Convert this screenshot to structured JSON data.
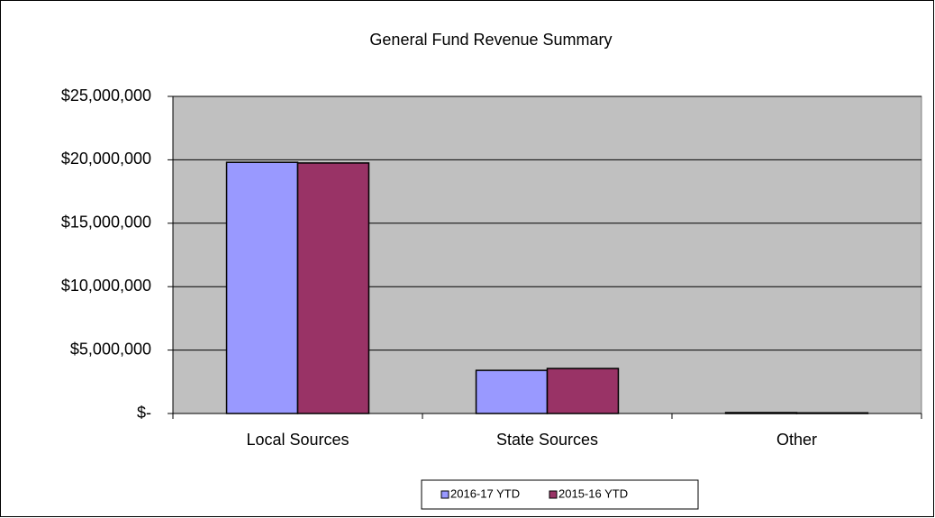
{
  "chart_data": {
    "type": "bar",
    "title": "General Fund Revenue Summary",
    "categories": [
      "Local Sources",
      "State Sources",
      "Other"
    ],
    "series": [
      {
        "name": "2016-17 YTD",
        "color": "#9999ff",
        "values": [
          19800000,
          3400000,
          70000
        ]
      },
      {
        "name": "2015-16 YTD",
        "color": "#993366",
        "values": [
          19750000,
          3550000,
          50000
        ]
      }
    ],
    "ylim": [
      0,
      25000000
    ],
    "yticks": [
      {
        "value": 0,
        "label": "$-"
      },
      {
        "value": 5000000,
        "label": "$5,000,000"
      },
      {
        "value": 10000000,
        "label": "$10,000,000"
      },
      {
        "value": 15000000,
        "label": "$15,000,000"
      },
      {
        "value": 20000000,
        "label": "$20,000,000"
      },
      {
        "value": 25000000,
        "label": "$25,000,000"
      }
    ],
    "grid": true,
    "plot_background": "#c0c0c0",
    "legend": "bottom"
  }
}
